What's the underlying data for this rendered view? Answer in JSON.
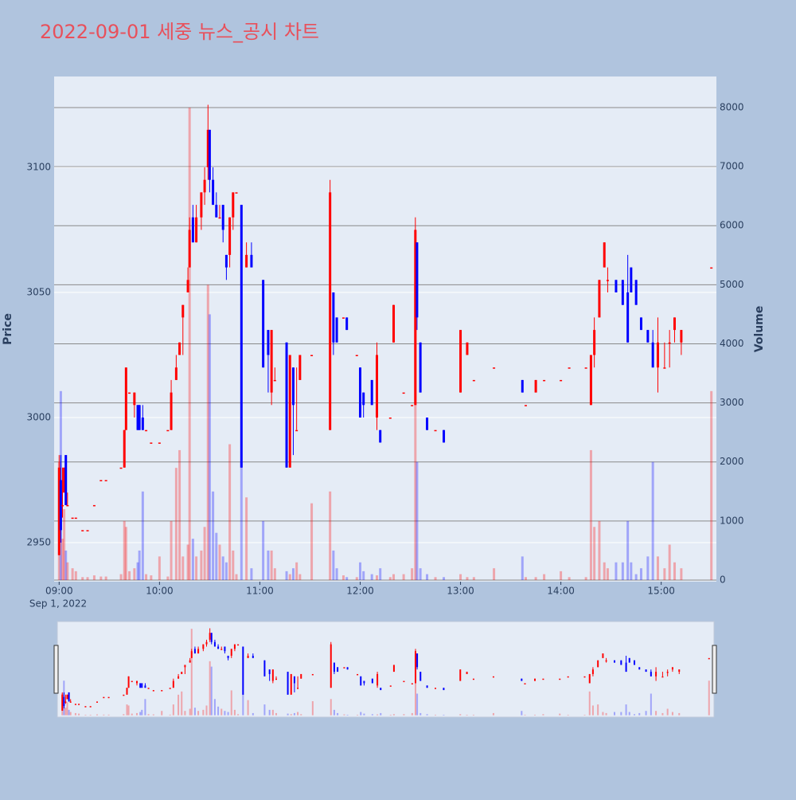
{
  "chart_data": {
    "type": "candlestick",
    "title": "2022-09-01 세중 뉴스_공시 차트",
    "y_title": "Price",
    "y2_title": "Volume",
    "date_label": "Sep 1, 2022",
    "up_color": "#ff0000",
    "down_color": "#0000ff",
    "rangeslider": true,
    "xlim": [
      "08:57",
      "15:33"
    ],
    "xticks": [
      "09:00",
      "10:00",
      "11:00",
      "12:00",
      "13:00",
      "14:00",
      "15:00"
    ],
    "ylim": [
      2934.4,
      3136.3
    ],
    "yticks": [
      2950,
      3000,
      3050,
      3100
    ],
    "y2lim": [
      -27,
      8526
    ],
    "y2ticks": [
      0,
      1000,
      2000,
      3000,
      4000,
      5000,
      6000,
      7000,
      8000
    ],
    "x": [
      "09:00",
      "09:01",
      "09:02",
      "09:03",
      "09:04",
      "09:05",
      "09:08",
      "09:10",
      "09:14",
      "09:17",
      "09:21",
      "09:25",
      "09:28",
      "09:37",
      "09:39",
      "09:40",
      "09:42",
      "09:45",
      "09:47",
      "09:48",
      "09:50",
      "09:52",
      "09:55",
      "10:00",
      "10:05",
      "10:07",
      "10:10",
      "10:12",
      "10:14",
      "10:17",
      "10:18",
      "10:20",
      "10:22",
      "10:25",
      "10:27",
      "10:29",
      "10:30",
      "10:32",
      "10:34",
      "10:36",
      "10:38",
      "10:40",
      "10:42",
      "10:44",
      "10:46",
      "10:49",
      "10:52",
      "10:55",
      "11:02",
      "11:05",
      "11:07",
      "11:09",
      "11:16",
      "11:18",
      "11:20",
      "11:22",
      "11:24",
      "11:31",
      "11:42",
      "11:44",
      "11:46",
      "11:50",
      "11:52",
      "11:58",
      "12:00",
      "12:02",
      "12:07",
      "12:10",
      "12:12",
      "12:18",
      "12:20",
      "12:26",
      "12:31",
      "12:33",
      "12:34",
      "12:36",
      "12:40",
      "12:45",
      "12:50",
      "13:00",
      "13:04",
      "13:08",
      "13:20",
      "13:37",
      "13:39",
      "13:45",
      "13:50",
      "14:00",
      "14:05",
      "14:15",
      "14:18",
      "14:20",
      "14:23",
      "14:26",
      "14:28",
      "14:33",
      "14:37",
      "14:40",
      "14:42",
      "14:45",
      "14:48",
      "14:52",
      "14:55",
      "14:58",
      "15:02",
      "15:05",
      "15:08",
      "15:12",
      "15:30"
    ],
    "open": [
      2945,
      2975,
      2965,
      2970,
      2985,
      2965,
      2960,
      2960,
      2955,
      2955,
      2965,
      2975,
      2975,
      2980,
      2980,
      2995,
      3010,
      3005,
      3005,
      3005,
      3000,
      2995,
      2990,
      2990,
      2995,
      2995,
      3015,
      3025,
      3040,
      3050,
      3060,
      3080,
      3070,
      3080,
      3090,
      3100,
      3115,
      3095,
      3085,
      3080,
      3085,
      3065,
      3065,
      3080,
      3090,
      3085,
      3060,
      3065,
      3055,
      3035,
      3010,
      3015,
      3030,
      2980,
      3020,
      2995,
      3015,
      3025,
      2995,
      3050,
      3040,
      3040,
      3040,
      3025,
      3020,
      3010,
      3015,
      3000,
      2995,
      3000,
      3030,
      3010,
      3005,
      3005,
      3070,
      3030,
      3000,
      2995,
      2995,
      3010,
      3025,
      3015,
      3020,
      3015,
      3005,
      3010,
      3015,
      3015,
      3020,
      3020,
      3005,
      3025,
      3040,
      3060,
      3055,
      3055,
      3055,
      3050,
      3060,
      3055,
      3040,
      3035,
      3030,
      3020,
      3020,
      3030,
      3035,
      3030,
      3060
    ],
    "high": [
      2985,
      2985,
      2980,
      2980,
      2985,
      2970,
      2960,
      2960,
      2955,
      2955,
      2965,
      2975,
      2975,
      2980,
      2995,
      3020,
      3010,
      3010,
      3005,
      3005,
      3005,
      2995,
      2990,
      2990,
      2995,
      3015,
      3025,
      3030,
      3045,
      3060,
      3080,
      3085,
      3085,
      3090,
      3100,
      3125,
      3115,
      3100,
      3090,
      3085,
      3085,
      3065,
      3080,
      3090,
      3090,
      3085,
      3070,
      3070,
      3055,
      3035,
      3035,
      3020,
      3030,
      3025,
      3020,
      3020,
      3025,
      3025,
      3095,
      3050,
      3040,
      3040,
      3040,
      3025,
      3020,
      3010,
      3015,
      3030,
      2995,
      3000,
      3045,
      3010,
      3005,
      3080,
      3070,
      3030,
      3000,
      2995,
      2995,
      3035,
      3030,
      3015,
      3020,
      3015,
      3005,
      3015,
      3015,
      3015,
      3020,
      3020,
      3025,
      3040,
      3055,
      3070,
      3060,
      3055,
      3055,
      3065,
      3060,
      3055,
      3040,
      3035,
      3035,
      3040,
      3030,
      3035,
      3040,
      3035,
      3060
    ],
    "low": [
      2945,
      2950,
      2960,
      2970,
      2965,
      2965,
      2960,
      2960,
      2955,
      2955,
      2965,
      2975,
      2975,
      2980,
      2980,
      2995,
      3010,
      3000,
      2995,
      2995,
      2995,
      2995,
      2990,
      2990,
      2995,
      2995,
      3015,
      3025,
      3025,
      3050,
      3060,
      3070,
      3070,
      3075,
      3085,
      3095,
      3090,
      3085,
      3080,
      3080,
      3070,
      3055,
      3060,
      3075,
      3090,
      2980,
      3060,
      3060,
      3020,
      3010,
      3005,
      3015,
      2980,
      2980,
      2985,
      2995,
      3015,
      3025,
      2995,
      3025,
      3030,
      3040,
      3035,
      3025,
      3000,
      3000,
      3005,
      2995,
      2990,
      3000,
      3030,
      3010,
      3005,
      3005,
      3035,
      3010,
      2995,
      2995,
      2990,
      3010,
      3025,
      3015,
      3020,
      3010,
      3005,
      3010,
      3015,
      3015,
      3020,
      3020,
      3005,
      3020,
      3040,
      3060,
      3050,
      3050,
      3045,
      3030,
      3050,
      3045,
      3035,
      3030,
      3020,
      3010,
      3020,
      3020,
      3030,
      3025,
      3060
    ],
    "close": [
      2980,
      2955,
      2965,
      2980,
      2965,
      2965,
      2960,
      2960,
      2955,
      2955,
      2965,
      2975,
      2975,
      2980,
      2995,
      3020,
      3010,
      3010,
      2995,
      2995,
      2995,
      2995,
      2990,
      2990,
      2995,
      3010,
      3020,
      3030,
      3045,
      3055,
      3075,
      3070,
      3080,
      3090,
      3095,
      3115,
      3095,
      3085,
      3080,
      3080,
      3075,
      3060,
      3080,
      3090,
      3090,
      2980,
      3065,
      3060,
      3020,
      3025,
      3035,
      3015,
      2980,
      3025,
      3005,
      2995,
      3025,
      3025,
      3090,
      3030,
      3030,
      3040,
      3035,
      3025,
      3000,
      3005,
      3005,
      3025,
      2990,
      3000,
      3045,
      3010,
      3005,
      3075,
      3040,
      3010,
      2995,
      2995,
      2990,
      3035,
      3030,
      3015,
      3020,
      3010,
      3005,
      3015,
      3015,
      3015,
      3020,
      3020,
      3025,
      3035,
      3055,
      3070,
      3055,
      3050,
      3045,
      3030,
      3050,
      3045,
      3035,
      3030,
      3020,
      3030,
      3020,
      3030,
      3040,
      3035,
      3060
    ],
    "volume": [
      2000,
      3200,
      700,
      1200,
      500,
      300,
      200,
      150,
      50,
      50,
      80,
      60,
      60,
      100,
      1000,
      900,
      150,
      200,
      300,
      500,
      1500,
      100,
      80,
      400,
      60,
      1000,
      1900,
      2200,
      400,
      600,
      8000,
      700,
      400,
      500,
      900,
      5000,
      4500,
      1500,
      800,
      600,
      400,
      300,
      2300,
      500,
      100,
      2000,
      1400,
      200,
      1000,
      500,
      500,
      200,
      150,
      100,
      200,
      300,
      100,
      1300,
      1500,
      500,
      200,
      80,
      50,
      50,
      300,
      150,
      100,
      80,
      200,
      50,
      100,
      100,
      200,
      5000,
      2000,
      200,
      100,
      50,
      50,
      100,
      50,
      50,
      200,
      400,
      50,
      50,
      100,
      150,
      50,
      50,
      2200,
      900,
      1000,
      300,
      200,
      300,
      300,
      1000,
      300,
      100,
      200,
      400,
      2000,
      400,
      200,
      600,
      300,
      200,
      3200
    ]
  }
}
